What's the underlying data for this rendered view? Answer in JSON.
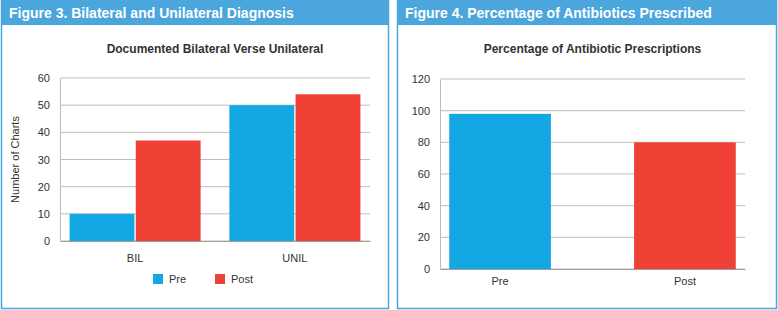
{
  "chart_data": [
    {
      "type": "grouped_bar",
      "title": "Figure 3. Bilateral and Unilateral Diagnosis",
      "subtitle": "Documented Bilateral Verse Unilateral",
      "ylabel": "Number of Charts",
      "categories": [
        "BIL",
        "UNIL"
      ],
      "series": [
        {
          "name": "Pre",
          "color": "#13a8e4",
          "values": [
            10,
            50
          ]
        },
        {
          "name": "Post",
          "color": "#ef4136",
          "values": [
            37,
            54
          ]
        }
      ],
      "ylim": [
        0,
        60
      ],
      "yticks": [
        0,
        10,
        20,
        30,
        40,
        50,
        60
      ],
      "grid": true,
      "legend": "bottom"
    },
    {
      "type": "bar",
      "title": "Figure 4. Percentage of Antibiotics Prescribed",
      "subtitle": "Percentage of Antibiotic Prescriptions",
      "categories": [
        "Pre",
        "Post"
      ],
      "values": [
        98,
        80
      ],
      "colors": [
        "#13a8e4",
        "#ef4136"
      ],
      "ylim": [
        0,
        120
      ],
      "yticks": [
        0,
        20,
        40,
        60,
        80,
        100,
        120
      ],
      "grid": true
    }
  ]
}
